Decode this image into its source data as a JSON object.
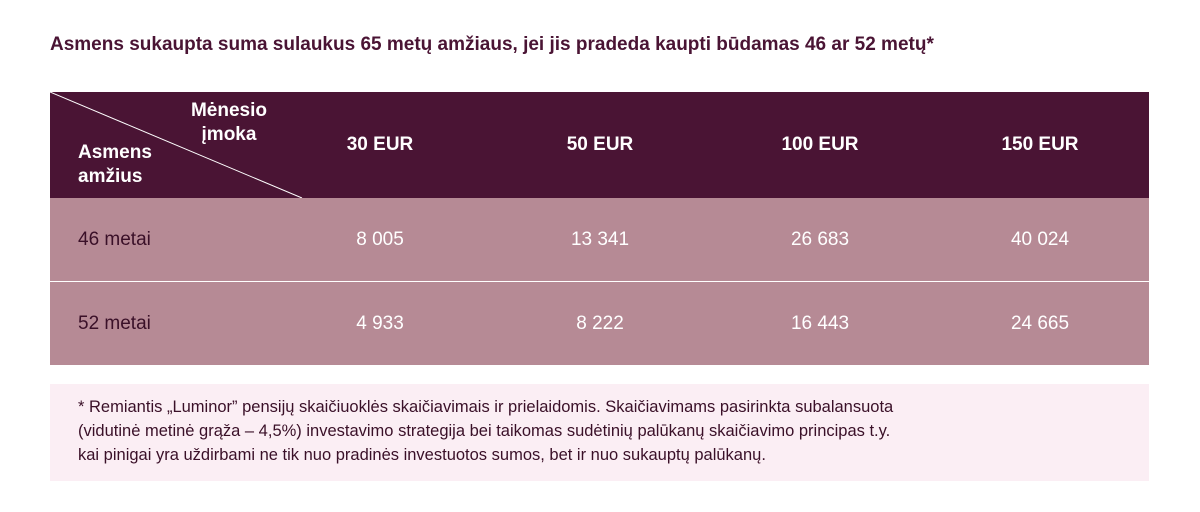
{
  "title": "Asmens sukaupta suma sulaukus 65 metų amžiaus, jei jis pradeda kaupti būdamas 46 ar 52 metų*",
  "table": {
    "corner_top_line1": "Mėnesio",
    "corner_top_line2": "įmoka",
    "corner_bottom_line1": "Asmens",
    "corner_bottom_line2": "amžius",
    "columns": [
      "30 EUR",
      "50 EUR",
      "100 EUR",
      "150 EUR"
    ],
    "rows": [
      {
        "label": "46 metai",
        "values": [
          "8 005",
          "13 341",
          "26 683",
          "40 024"
        ]
      },
      {
        "label": "52 metai",
        "values": [
          "4 933",
          "8 222",
          "16 443",
          "24 665"
        ]
      }
    ]
  },
  "note": {
    "line1": "* Remiantis „Luminor” pensijų skaičiuoklės skaičiavimais ir prielaidomis. Skaičiavimams pasirinkta subalansuota",
    "line2": "(vidutinė metinė grąža – 4,5%) investavimo strategija bei taikomas sudėtinių palūkanų skaičiavimo principas t.y.",
    "line3": "kai pinigai yra uždirbami ne tik nuo pradinės investuotos sumos, bet ir nuo sukauptų palūkanų."
  },
  "colors": {
    "header_bg": "#4a1434",
    "row_bg": "#b68a95",
    "note_bg": "#fbeef4",
    "title": "#4a1434"
  }
}
